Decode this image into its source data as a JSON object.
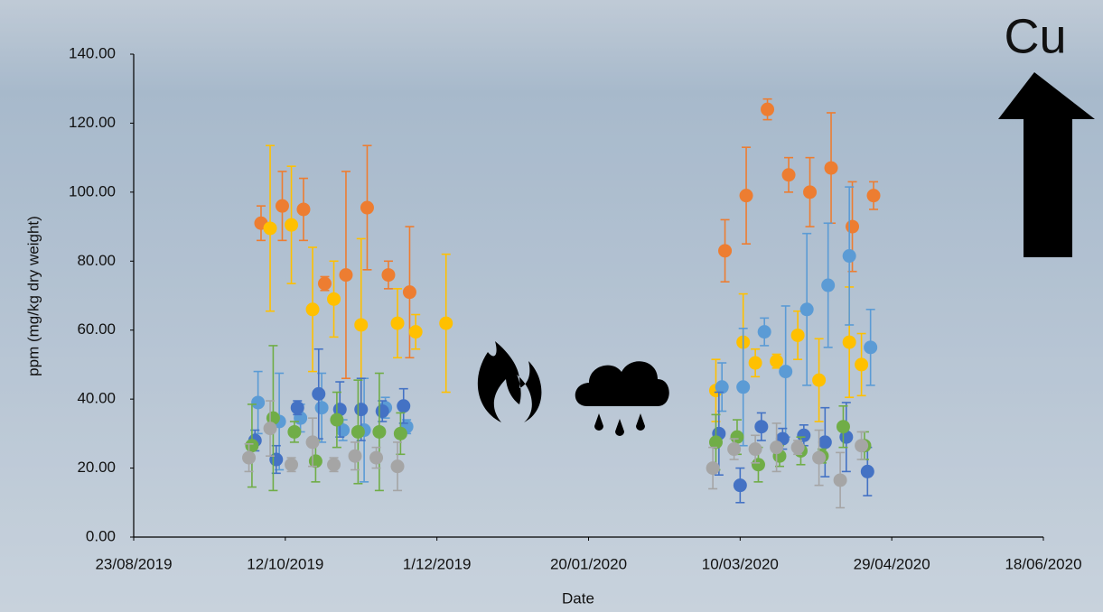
{
  "chart_data": {
    "type": "scatter",
    "x_label": "Date",
    "y_label": "ppm (mg/kg dry weight)",
    "annotation": "Cu",
    "xlim": [
      "23/08/2019",
      "18/06/2020"
    ],
    "xticks": [
      "23/08/2019",
      "12/10/2019",
      "1/12/2019",
      "20/01/2020",
      "10/03/2020",
      "29/04/2020",
      "18/06/2020"
    ],
    "ylim": [
      0,
      140
    ],
    "yticks": [
      {
        "value": 0,
        "label": "0.00"
      },
      {
        "value": 20,
        "label": "20.00"
      },
      {
        "value": 40,
        "label": "40.00"
      },
      {
        "value": 60,
        "label": "60.00"
      },
      {
        "value": 80,
        "label": "80.00"
      },
      {
        "value": 100,
        "label": "100.00"
      },
      {
        "value": 120,
        "label": "120.00"
      },
      {
        "value": 140,
        "label": "140.00"
      }
    ],
    "series": [
      {
        "color": "#ed7d31",
        "x": [
          "04/10/2019",
          "11/10/2019",
          "18/10/2019",
          "25/10/2019",
          "01/11/2019",
          "08/11/2019",
          "15/11/2019",
          "22/11/2019",
          "05/03/2020",
          "12/03/2020",
          "19/03/2020",
          "26/03/2020",
          "02/04/2020",
          "09/04/2020",
          "16/04/2020",
          "23/04/2020"
        ],
        "values": [
          91,
          96,
          95,
          73.5,
          76,
          95.5,
          76,
          71,
          83,
          99,
          124,
          105,
          100,
          107,
          90,
          99
        ],
        "errors": [
          5,
          10,
          9,
          2,
          30,
          18,
          4,
          19,
          9,
          14,
          3,
          5,
          10,
          16,
          13,
          4
        ]
      },
      {
        "color": "#ffc000",
        "x": [
          "07/10/2019",
          "14/10/2019",
          "21/10/2019",
          "28/10/2019",
          "06/11/2019",
          "18/11/2019",
          "24/11/2019",
          "04/12/2019",
          "02/03/2020",
          "11/03/2020",
          "15/03/2020",
          "22/03/2020",
          "29/03/2020",
          "05/04/2020",
          "15/04/2020",
          "19/04/2020"
        ],
        "values": [
          89.5,
          90.5,
          66,
          69,
          61.5,
          62,
          59.5,
          62,
          42.5,
          56.5,
          50.5,
          51,
          58.5,
          45.5,
          56.5,
          50
        ],
        "errors": [
          24,
          17,
          18,
          11,
          25,
          10,
          5,
          20,
          9,
          14,
          4,
          2,
          7,
          12,
          16,
          9
        ]
      },
      {
        "color": "#5b9bd5",
        "x": [
          "03/10/2019",
          "10/10/2019",
          "17/10/2019",
          "24/10/2019",
          "31/10/2019",
          "07/11/2019",
          "14/11/2019",
          "21/11/2019",
          "04/03/2020",
          "11/03/2020",
          "18/03/2020",
          "25/03/2020",
          "01/04/2020",
          "08/04/2020",
          "15/04/2020",
          "22/04/2020"
        ],
        "values": [
          39,
          33.5,
          34.5,
          37.5,
          31,
          31,
          37.5,
          32,
          43.5,
          43.5,
          59.5,
          48,
          66,
          73,
          81.5,
          55
        ],
        "errors": [
          9,
          14,
          4,
          10,
          3,
          15,
          3,
          2,
          7,
          17,
          4,
          19,
          22,
          18,
          20,
          11
        ]
      },
      {
        "color": "#4472c4",
        "x": [
          "02/10/2019",
          "09/10/2019",
          "16/10/2019",
          "23/10/2019",
          "30/10/2019",
          "06/11/2019",
          "13/11/2019",
          "20/11/2019",
          "03/03/2020",
          "10/03/2020",
          "17/03/2020",
          "24/03/2020",
          "31/03/2020",
          "07/04/2020",
          "14/04/2020",
          "21/04/2020"
        ],
        "values": [
          28,
          22.5,
          37.5,
          41.5,
          37,
          37,
          36.5,
          38,
          30,
          15,
          32,
          28.5,
          29.5,
          27.5,
          29,
          19
        ],
        "errors": [
          3,
          4,
          2,
          13,
          8,
          9,
          3,
          5,
          12,
          5,
          4,
          3,
          3,
          10,
          10,
          7
        ]
      },
      {
        "color": "#70ad47",
        "x": [
          "01/10/2019",
          "08/10/2019",
          "15/10/2019",
          "22/10/2019",
          "29/10/2019",
          "05/11/2019",
          "12/11/2019",
          "19/11/2019",
          "02/03/2020",
          "09/03/2020",
          "16/03/2020",
          "23/03/2020",
          "30/03/2020",
          "06/04/2020",
          "13/04/2020",
          "20/04/2020"
        ],
        "values": [
          26.5,
          34.5,
          30.5,
          22,
          34,
          30.5,
          30.5,
          30,
          27.5,
          29,
          21,
          23.5,
          25,
          23.5,
          32,
          26.5
        ],
        "errors": [
          12,
          21,
          3,
          6,
          8,
          15,
          17,
          6,
          8,
          5,
          5,
          3,
          4,
          2,
          6,
          4
        ]
      },
      {
        "color": "#a5a5a5",
        "x": [
          "30/09/2019",
          "07/10/2019",
          "14/10/2019",
          "21/10/2019",
          "28/10/2019",
          "04/11/2019",
          "11/11/2019",
          "18/11/2019",
          "01/03/2020",
          "08/03/2020",
          "15/03/2020",
          "22/03/2020",
          "29/03/2020",
          "05/04/2020",
          "12/04/2020",
          "19/04/2020"
        ],
        "values": [
          23,
          31.5,
          21,
          27.5,
          21,
          23.5,
          23,
          20.5,
          20,
          25.5,
          25.5,
          26,
          26,
          23,
          16.5,
          26.5
        ],
        "errors": [
          4,
          8,
          2,
          7,
          2,
          4,
          3,
          7,
          6,
          3,
          4,
          7,
          2,
          8,
          8,
          4
        ]
      }
    ]
  }
}
